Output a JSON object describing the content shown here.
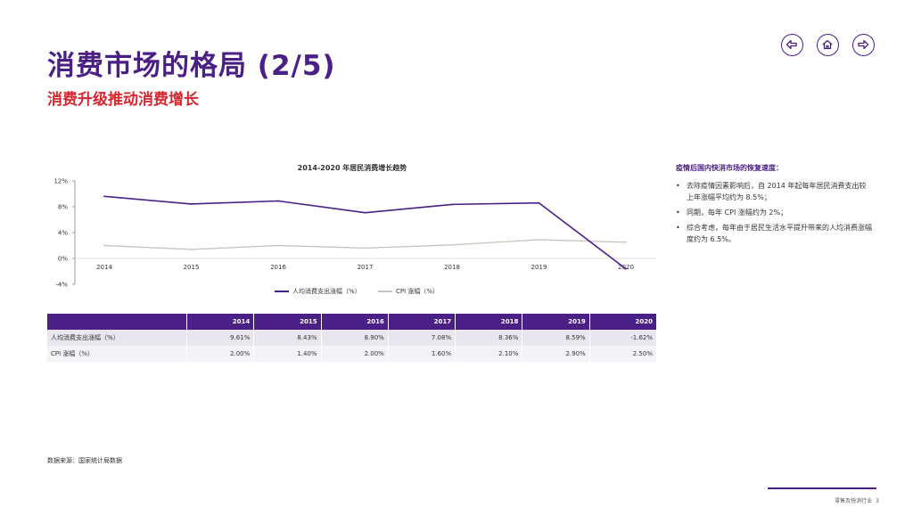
{
  "header": {
    "title": "消费市场的格局 (2/5)",
    "subtitle": "消费升级推动消费增长"
  },
  "nav": {
    "back_icon": "arrow-left-icon",
    "home_icon": "home-icon",
    "forward_icon": "arrow-right-icon",
    "accent_color": "#4a1f86"
  },
  "chart_data": {
    "type": "line",
    "title": "2014-2020 年居民消费增长趋势",
    "x": [
      "2014",
      "2015",
      "2016",
      "2017",
      "2018",
      "2019",
      "2020"
    ],
    "ylim": [
      -4,
      12
    ],
    "yticks": [
      12,
      8,
      4,
      0,
      -4
    ],
    "ytick_labels": [
      "12%",
      "8%",
      "4%",
      "0%",
      "-4%"
    ],
    "grid": false,
    "legend_position": "bottom",
    "series": [
      {
        "name": "人均消费支出涨幅（%）",
        "values": [
          9.61,
          8.43,
          8.9,
          7.08,
          8.36,
          8.59,
          -1.62
        ],
        "color": "#4a1f86"
      },
      {
        "name": "CPI 涨幅（%）",
        "values": [
          2.0,
          1.4,
          2.0,
          1.6,
          2.1,
          2.9,
          2.5
        ],
        "color": "#c9c2b8"
      }
    ]
  },
  "table": {
    "headers": [
      "",
      "2014",
      "2015",
      "2016",
      "2017",
      "2018",
      "2019",
      "2020"
    ],
    "rows": [
      [
        "人均消费支出涨幅（%）",
        "9.61%",
        "8.43%",
        "8.90%",
        "7.08%",
        "8.36%",
        "8.59%",
        "-1.62%"
      ],
      [
        "CPI 涨幅（%）",
        "2.00%",
        "1.40%",
        "2.00%",
        "1.60%",
        "2.10%",
        "2.90%",
        "2.50%"
      ]
    ]
  },
  "side": {
    "heading": "疫情后国内快消市场的恢复速度：",
    "bullets": [
      "去除疫情因素影响后，自 2014 年起每年居民消费支出较上年涨幅平均约为 8.5%；",
      "同期，每年 CPI 涨幅约为 2%；",
      "综合考虑，每年由于居民生活水平提升带来的人均消费涨幅度约为 6.5%。"
    ]
  },
  "source": "数据来源：国家统计局数据",
  "footer": {
    "text": "零售及快消行业",
    "page": "3"
  }
}
